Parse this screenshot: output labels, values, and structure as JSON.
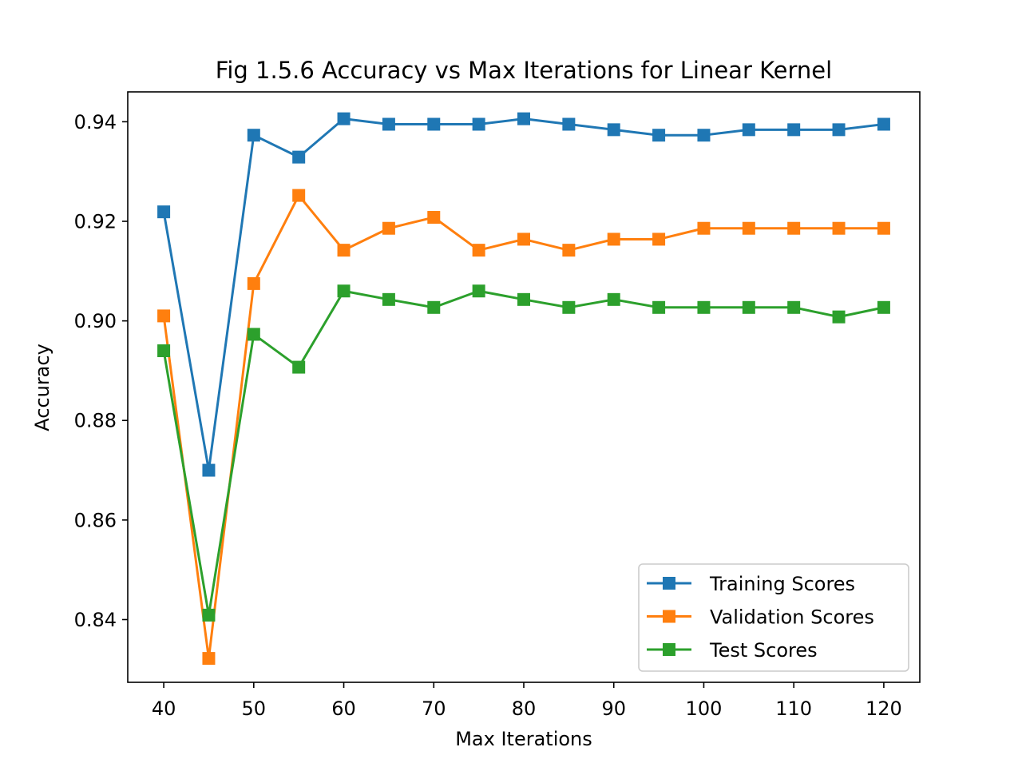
{
  "chart_data": {
    "type": "line",
    "title": "Fig 1.5.6 Accuracy vs Max Iterations for Linear Kernel",
    "xlabel": "Max Iterations",
    "ylabel": "Accuracy",
    "x": [
      40,
      45,
      50,
      55,
      60,
      65,
      70,
      75,
      80,
      85,
      90,
      95,
      100,
      105,
      110,
      115,
      120
    ],
    "xlim": [
      36,
      124
    ],
    "ylim": [
      0.8274,
      0.946
    ],
    "xticks": [
      "40",
      "50",
      "60",
      "70",
      "80",
      "90",
      "100",
      "110",
      "120"
    ],
    "yticks": [
      "0.84",
      "0.86",
      "0.88",
      "0.90",
      "0.92",
      "0.94"
    ],
    "grid": false,
    "legend_position": "lower-right",
    "series": [
      {
        "name": "Training Scores",
        "color": "#1f77b4",
        "marker": "square",
        "values": [
          0.9219,
          0.87,
          0.9373,
          0.9329,
          0.9406,
          0.9395,
          0.9395,
          0.9395,
          0.9406,
          0.9395,
          0.9384,
          0.9373,
          0.9373,
          0.9384,
          0.9384,
          0.9384,
          0.9395
        ]
      },
      {
        "name": "Validation Scores",
        "color": "#ff7f0e",
        "marker": "square",
        "values": [
          0.901,
          0.8322,
          0.9075,
          0.9252,
          0.9142,
          0.9186,
          0.9208,
          0.9142,
          0.9164,
          0.9142,
          0.9164,
          0.9164,
          0.9186,
          0.9186,
          0.9186,
          0.9186,
          0.9186
        ]
      },
      {
        "name": "Test Scores",
        "color": "#2ca02c",
        "marker": "square",
        "values": [
          0.894,
          0.8409,
          0.8973,
          0.8907,
          0.906,
          0.9043,
          0.9027,
          0.906,
          0.9043,
          0.9027,
          0.9043,
          0.9027,
          0.9027,
          0.9027,
          0.9027,
          0.9008,
          0.9027
        ]
      }
    ]
  }
}
